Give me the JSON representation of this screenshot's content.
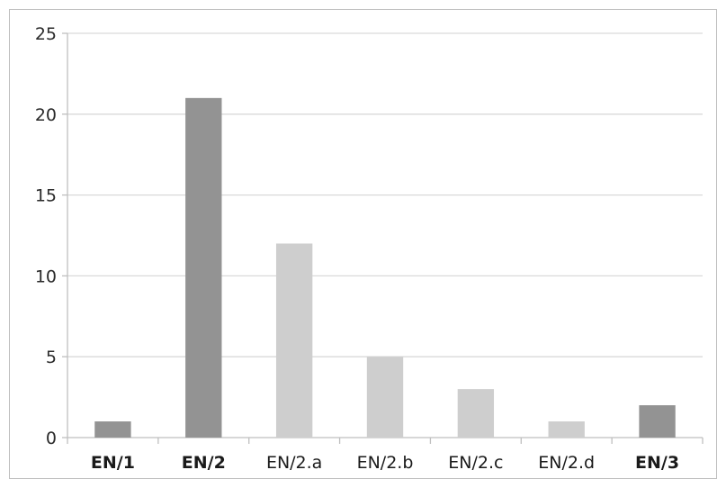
{
  "chart_data": {
    "type": "bar",
    "title": "",
    "xlabel": "",
    "ylabel": "",
    "ylim": [
      0,
      25
    ],
    "yticks": [
      0,
      5,
      10,
      15,
      20,
      25
    ],
    "grid": true,
    "legend": "none",
    "categories": [
      "EN/1",
      "EN/2",
      "EN/2.a",
      "EN/2.b",
      "EN/2.c",
      "EN/2.d",
      "EN/3"
    ],
    "values": [
      1,
      21,
      12,
      5,
      3,
      1,
      2
    ],
    "bold_categories": [
      "EN/1",
      "EN/2",
      "EN/3"
    ],
    "colors": {
      "main": "#939393",
      "sub": "#cecece",
      "grid": "#d9d9d9",
      "axis": "#bfbfbf"
    }
  }
}
